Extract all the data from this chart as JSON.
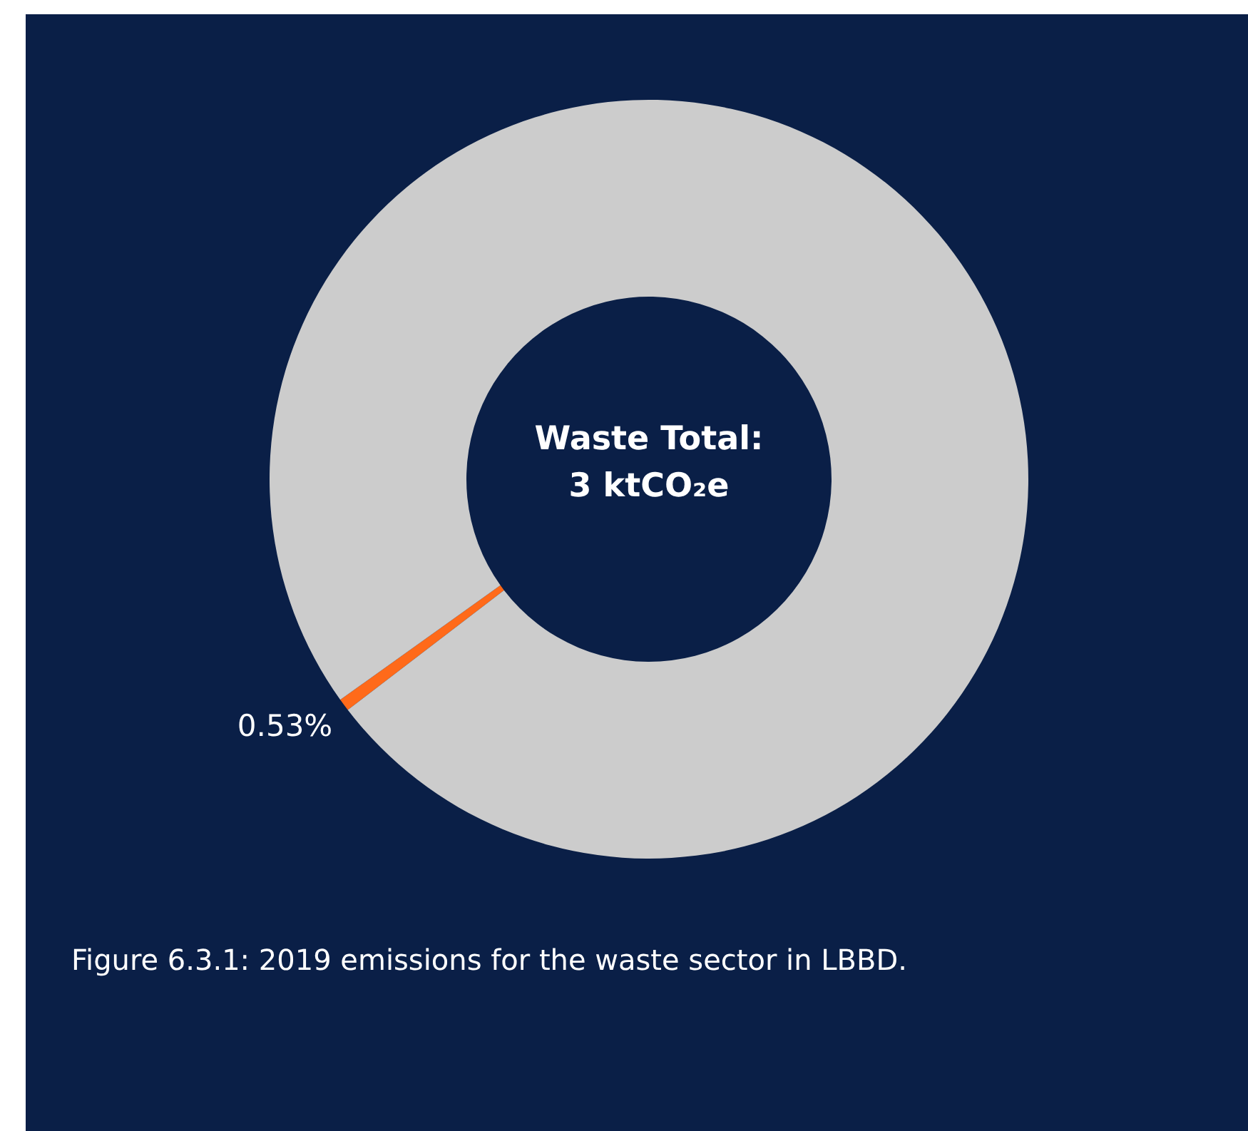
{
  "chart_data": {
    "type": "donut",
    "title": "Waste Total:\n3 ktCO₂e",
    "categories": [
      null,
      null
    ],
    "values": [
      0.53,
      99.47
    ],
    "colors": [
      "#ff6a1a",
      "#cccccc"
    ],
    "value_labels": [
      "0.53%",
      null
    ],
    "annotations": [
      "Figure 6.3.1: 2019 emissions for the waste sector in LBBD."
    ]
  }
}
